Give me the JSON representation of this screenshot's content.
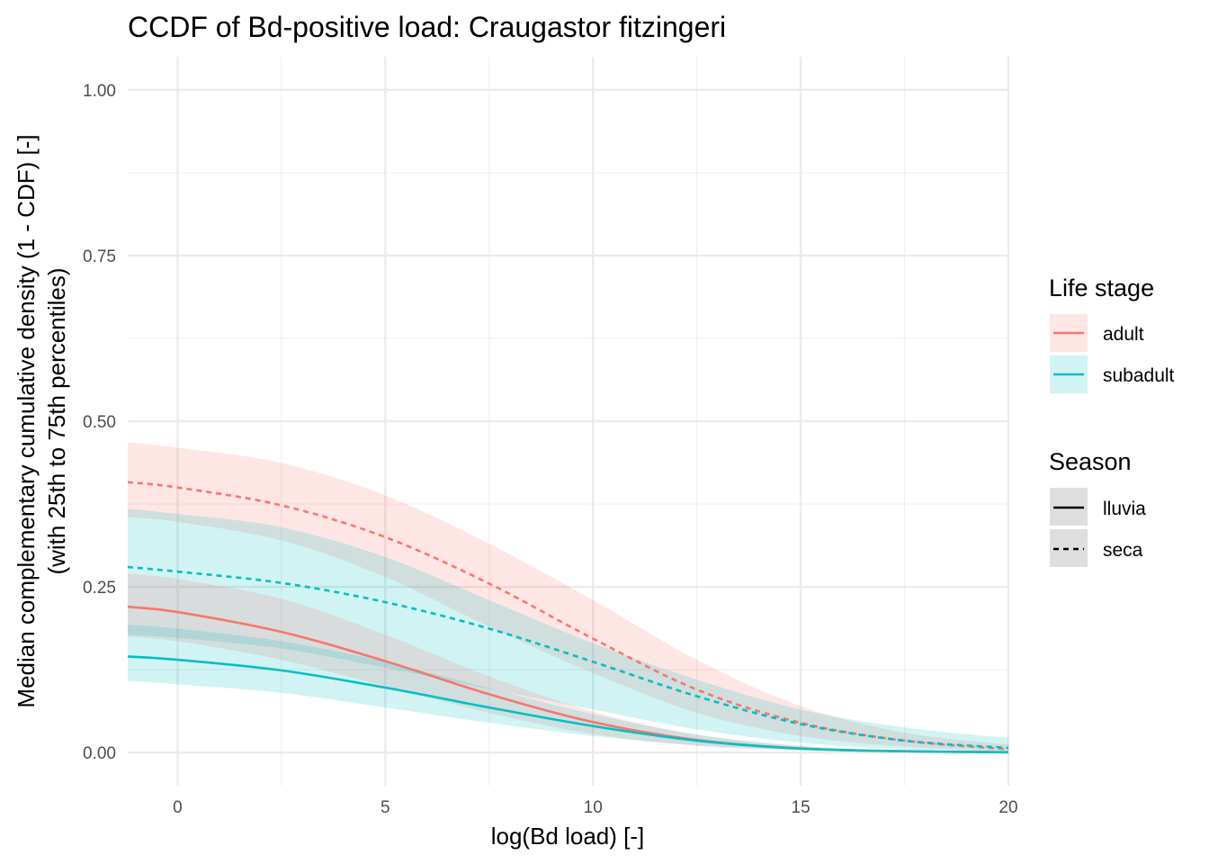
{
  "chart_data": {
    "type": "line",
    "title": "CCDF of Bd-positive load: Craugastor fitzingeri",
    "xlabel": "log(Bd load) [-]",
    "ylabel": [
      "Median complementary cumulative density (1 - CDF) [-]",
      "(with 25th to 75th percentiles)"
    ],
    "xlim": [
      -1.2,
      20
    ],
    "ylim": [
      -0.05,
      1.05
    ],
    "x_ticks": [
      0,
      5,
      10,
      15,
      20
    ],
    "x_tick_labels": [
      "0",
      "5",
      "10",
      "15",
      "20"
    ],
    "y_ticks": [
      0,
      0.25,
      0.5,
      0.75,
      1.0
    ],
    "y_tick_labels": [
      "0.00",
      "0.25",
      "0.50",
      "0.75",
      "1.00"
    ],
    "grid": true,
    "legend_position": "right",
    "legends": [
      {
        "title": "Life stage",
        "type": "color",
        "entries": [
          {
            "label": "adult",
            "color": "#F8766D"
          },
          {
            "label": "subadult",
            "color": "#00BFC4"
          }
        ]
      },
      {
        "title": "Season",
        "type": "linetype",
        "entries": [
          {
            "label": "lluvia",
            "dash": "solid"
          },
          {
            "label": "seca",
            "dash": "dashed"
          }
        ]
      }
    ],
    "series": [
      {
        "name": "adult seca",
        "life_stage": "adult",
        "season": "seca",
        "color": "#F8766D",
        "dash": "dashed",
        "x": [
          -1.2,
          0,
          2.5,
          5,
          7.5,
          10,
          12.5,
          15,
          17.5,
          20
        ],
        "y": [
          0.408,
          0.4,
          0.373,
          0.325,
          0.255,
          0.172,
          0.095,
          0.045,
          0.018,
          0.005
        ],
        "lower": [
          0.355,
          0.348,
          0.32,
          0.265,
          0.19,
          0.12,
          0.06,
          0.025,
          0.009,
          0.002
        ],
        "upper": [
          0.468,
          0.46,
          0.437,
          0.388,
          0.315,
          0.23,
          0.14,
          0.07,
          0.03,
          0.012
        ]
      },
      {
        "name": "subadult seca",
        "life_stage": "subadult",
        "season": "seca",
        "color": "#00BFC4",
        "dash": "dashed",
        "x": [
          -1.2,
          0,
          2.5,
          5,
          7.5,
          10,
          12.5,
          15,
          17.5,
          20
        ],
        "y": [
          0.28,
          0.273,
          0.256,
          0.227,
          0.187,
          0.137,
          0.085,
          0.043,
          0.018,
          0.007
        ],
        "lower": [
          0.178,
          0.173,
          0.157,
          0.128,
          0.096,
          0.065,
          0.035,
          0.015,
          0.005,
          0.001
        ],
        "upper": [
          0.368,
          0.36,
          0.34,
          0.295,
          0.23,
          0.165,
          0.11,
          0.065,
          0.038,
          0.022
        ]
      },
      {
        "name": "adult lluvia",
        "life_stage": "adult",
        "season": "lluvia",
        "color": "#F8766D",
        "dash": "solid",
        "x": [
          -1.2,
          0,
          2.5,
          5,
          7.5,
          10,
          12.5,
          15,
          17.5,
          20
        ],
        "y": [
          0.22,
          0.212,
          0.182,
          0.138,
          0.088,
          0.046,
          0.019,
          0.006,
          0.002,
          0.0005
        ],
        "lower": [
          0.175,
          0.168,
          0.14,
          0.1,
          0.06,
          0.028,
          0.01,
          0.003,
          0.001,
          0.0001
        ],
        "upper": [
          0.27,
          0.262,
          0.232,
          0.178,
          0.115,
          0.062,
          0.027,
          0.01,
          0.003,
          0.001
        ]
      },
      {
        "name": "subadult lluvia",
        "life_stage": "subadult",
        "season": "lluvia",
        "color": "#00BFC4",
        "dash": "solid",
        "x": [
          -1.2,
          0,
          2.5,
          5,
          7.5,
          10,
          12.5,
          15,
          17.5,
          20
        ],
        "y": [
          0.145,
          0.14,
          0.124,
          0.098,
          0.068,
          0.04,
          0.018,
          0.006,
          0.002,
          0.0005
        ],
        "lower": [
          0.108,
          0.103,
          0.09,
          0.068,
          0.045,
          0.025,
          0.011,
          0.004,
          0.001,
          0.0001
        ],
        "upper": [
          0.193,
          0.187,
          0.168,
          0.137,
          0.097,
          0.058,
          0.027,
          0.01,
          0.003,
          0.001
        ]
      }
    ]
  }
}
